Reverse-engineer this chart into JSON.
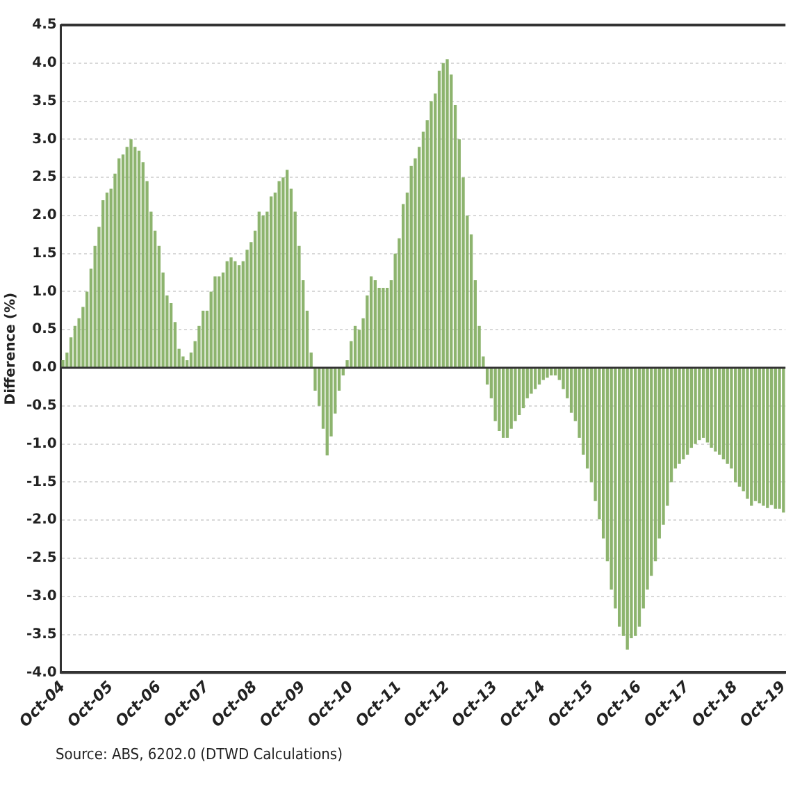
{
  "chart_data": {
    "type": "bar",
    "ylabel": "Difference (%)",
    "categories": [
      "Oct-04",
      null,
      null,
      null,
      null,
      null,
      null,
      null,
      null,
      null,
      null,
      null,
      "Oct-05",
      null,
      null,
      null,
      null,
      null,
      null,
      null,
      null,
      null,
      null,
      null,
      "Oct-06",
      null,
      null,
      null,
      null,
      null,
      null,
      null,
      null,
      null,
      null,
      null,
      "Oct-07",
      null,
      null,
      null,
      null,
      null,
      null,
      null,
      null,
      null,
      null,
      null,
      "Oct-08",
      null,
      null,
      null,
      null,
      null,
      null,
      null,
      null,
      null,
      null,
      null,
      "Oct-09",
      null,
      null,
      null,
      null,
      null,
      null,
      null,
      null,
      null,
      null,
      null,
      "Oct-10",
      null,
      null,
      null,
      null,
      null,
      null,
      null,
      null,
      null,
      null,
      null,
      "Oct-11",
      null,
      null,
      null,
      null,
      null,
      null,
      null,
      null,
      null,
      null,
      null,
      "Oct-12",
      null,
      null,
      null,
      null,
      null,
      null,
      null,
      null,
      null,
      null,
      null,
      "Oct-13",
      null,
      null,
      null,
      null,
      null,
      null,
      null,
      null,
      null,
      null,
      null,
      "Oct-14",
      null,
      null,
      null,
      null,
      null,
      null,
      null,
      null,
      null,
      null,
      null,
      "Oct-15",
      null,
      null,
      null,
      null,
      null,
      null,
      null,
      null,
      null,
      null,
      null,
      "Oct-16",
      null,
      null,
      null,
      null,
      null,
      null,
      null,
      null,
      null,
      null,
      null,
      "Oct-17",
      null,
      null,
      null,
      null,
      null,
      null,
      null,
      null,
      null,
      null,
      null,
      "Oct-18",
      null,
      null,
      null,
      null,
      null,
      null,
      null,
      null,
      null,
      null,
      null,
      "Oct-19"
    ],
    "values": [
      0.1,
      0.2,
      0.4,
      0.55,
      0.65,
      0.8,
      1.0,
      1.3,
      1.6,
      1.85,
      2.2,
      2.3,
      2.35,
      2.55,
      2.75,
      2.8,
      2.9,
      3.0,
      2.9,
      2.85,
      2.7,
      2.45,
      2.05,
      1.8,
      1.6,
      1.25,
      0.95,
      0.85,
      0.6,
      0.25,
      0.15,
      0.1,
      0.2,
      0.35,
      0.55,
      0.75,
      0.75,
      1.0,
      1.2,
      1.2,
      1.25,
      1.4,
      1.45,
      1.4,
      1.35,
      1.4,
      1.55,
      1.65,
      1.8,
      2.05,
      2.0,
      2.05,
      2.25,
      2.3,
      2.45,
      2.5,
      2.6,
      2.35,
      2.05,
      1.6,
      1.15,
      0.75,
      0.2,
      -0.3,
      -0.5,
      -0.8,
      -1.15,
      -0.9,
      -0.6,
      -0.3,
      -0.1,
      0.1,
      0.35,
      0.55,
      0.5,
      0.65,
      0.95,
      1.2,
      1.15,
      1.05,
      1.05,
      1.05,
      1.15,
      1.5,
      1.7,
      2.15,
      2.3,
      2.65,
      2.75,
      2.9,
      3.1,
      3.25,
      3.5,
      3.6,
      3.9,
      4.0,
      4.05,
      3.85,
      3.45,
      3.0,
      2.5,
      2.0,
      1.75,
      1.15,
      0.55,
      0.15,
      -0.22,
      -0.4,
      -0.7,
      -0.83,
      -0.92,
      -0.92,
      -0.8,
      -0.7,
      -0.62,
      -0.53,
      -0.4,
      -0.34,
      -0.28,
      -0.22,
      -0.16,
      -0.13,
      -0.1,
      -0.1,
      -0.16,
      -0.28,
      -0.4,
      -0.59,
      -0.7,
      -0.92,
      -1.14,
      -1.32,
      -1.5,
      -1.75,
      -1.99,
      -2.24,
      -2.54,
      -2.91,
      -3.16,
      -3.4,
      -3.52,
      -3.7,
      -3.55,
      -3.52,
      -3.4,
      -3.16,
      -2.91,
      -2.73,
      -2.54,
      -2.24,
      -2.06,
      -1.81,
      -1.5,
      -1.32,
      -1.26,
      -1.2,
      -1.14,
      -1.05,
      -1.0,
      -0.95,
      -0.92,
      -0.98,
      -1.05,
      -1.1,
      -1.14,
      -1.2,
      -1.26,
      -1.32,
      -1.5,
      -1.56,
      -1.62,
      -1.72,
      -1.81,
      -1.75,
      -1.78,
      -1.81,
      -1.84,
      -1.8,
      -1.85,
      -1.85,
      -1.9
    ],
    "color": "#8db46e",
    "ylim": [
      -4,
      4.5
    ],
    "yticks": [
      {
        "value": -4,
        "label": "-4.0"
      },
      -3.5,
      {
        "value": -3,
        "label": "-3.0"
      },
      -2.5,
      {
        "value": -2,
        "label": "-2.0"
      },
      -1.5,
      {
        "value": -1,
        "label": "-1.0"
      },
      -0.5,
      {
        "value": 0,
        "label": "0.0"
      },
      0.5,
      {
        "value": 1,
        "label": "1.0"
      },
      1.5,
      {
        "value": 2,
        "label": "2.0"
      },
      2.5,
      {
        "value": 3,
        "label": "3.0"
      },
      3.5,
      {
        "value": 4,
        "label": "4.0"
      },
      4.5
    ],
    "grid": "y",
    "annotations": [
      "Source: ABS, 6202.0 (DTWD Calculations)"
    ]
  }
}
